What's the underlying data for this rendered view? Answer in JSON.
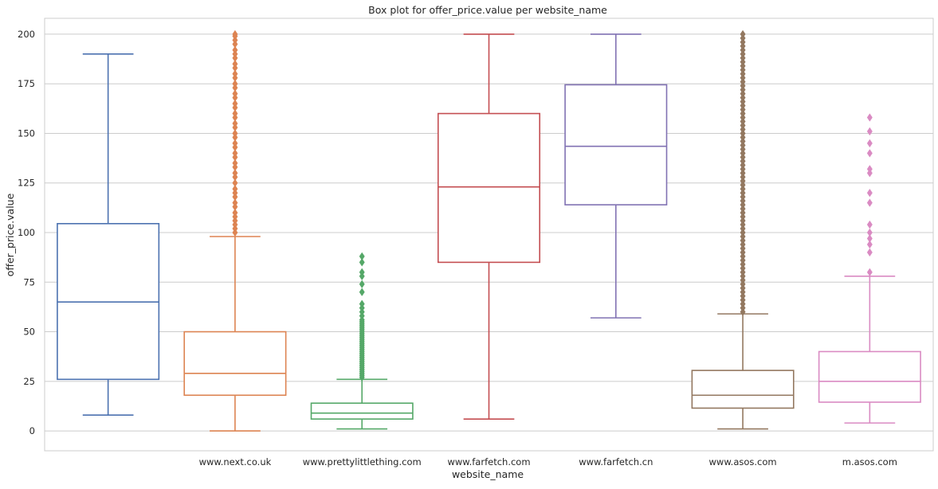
{
  "chart_data": {
    "type": "box",
    "title": "Box plot for offer_price.value per website_name",
    "xlabel": "website_name",
    "ylabel": "offer_price.value",
    "ylim": [
      -10,
      208
    ],
    "yticks": [
      0,
      25,
      50,
      75,
      100,
      125,
      150,
      175,
      200
    ],
    "grid": "horizontal",
    "categories": [
      "",
      "www.next.co.uk",
      "www.prettylittlething.com",
      "www.farfetch.com",
      "www.farfetch.cn",
      "www.asos.com",
      "m.asos.com"
    ],
    "colors": [
      "#4c72b0",
      "#dd8452",
      "#55a868",
      "#c44e52",
      "#8172b3",
      "#937860",
      "#da8bc3"
    ],
    "boxes": [
      {
        "whisker_low": 8,
        "q1": 26,
        "median": 65,
        "q3": 104.5,
        "whisker_high": 190,
        "outliers": []
      },
      {
        "whisker_low": 0,
        "q1": 18,
        "median": 29,
        "q3": 50,
        "whisker_high": 98,
        "outliers": [
          100,
          102,
          104,
          106,
          108,
          110,
          113,
          115,
          118,
          120,
          122,
          125,
          128,
          130,
          133,
          135,
          138,
          140,
          143,
          145,
          148,
          150,
          153,
          155,
          158,
          160,
          163,
          165,
          168,
          170,
          173,
          175,
          178,
          180,
          183,
          185,
          188,
          190,
          192,
          195,
          197,
          199,
          200
        ]
      },
      {
        "whisker_low": 1,
        "q1": 6,
        "median": 9,
        "q3": 14,
        "whisker_high": 26,
        "outliers": [
          27,
          28,
          29,
          30,
          31,
          32,
          33,
          34,
          35,
          36,
          37,
          38,
          39,
          40,
          41,
          42,
          43,
          44,
          45,
          46,
          47,
          48,
          49,
          50,
          51,
          52,
          53,
          54,
          55,
          56,
          58,
          60,
          62,
          64,
          70,
          74,
          78,
          80,
          85,
          88
        ]
      },
      {
        "whisker_low": 6,
        "q1": 85,
        "median": 123,
        "q3": 160,
        "whisker_high": 200,
        "outliers": []
      },
      {
        "whisker_low": 57,
        "q1": 114,
        "median": 143.5,
        "q3": 174.5,
        "whisker_high": 200,
        "outliers": []
      },
      {
        "whisker_low": 1,
        "q1": 11.5,
        "median": 18,
        "q3": 30.5,
        "whisker_high": 59,
        "outliers": [
          60,
          62,
          64,
          66,
          68,
          70,
          72,
          74,
          76,
          78,
          80,
          82,
          84,
          86,
          88,
          90,
          92,
          94,
          96,
          98,
          100,
          102,
          104,
          106,
          108,
          110,
          112,
          114,
          116,
          118,
          120,
          122,
          124,
          126,
          128,
          130,
          132,
          134,
          136,
          138,
          140,
          142,
          144,
          146,
          148,
          150,
          152,
          154,
          156,
          158,
          160,
          162,
          164,
          166,
          168,
          170,
          172,
          174,
          176,
          178,
          180,
          182,
          184,
          186,
          188,
          190,
          192,
          194,
          196,
          198,
          200
        ]
      },
      {
        "whisker_low": 4,
        "q1": 14.5,
        "median": 25,
        "q3": 40,
        "whisker_high": 78,
        "outliers": [
          80,
          90,
          94,
          97,
          100,
          104,
          115,
          120,
          130,
          132,
          140,
          145,
          151,
          158
        ]
      }
    ]
  }
}
